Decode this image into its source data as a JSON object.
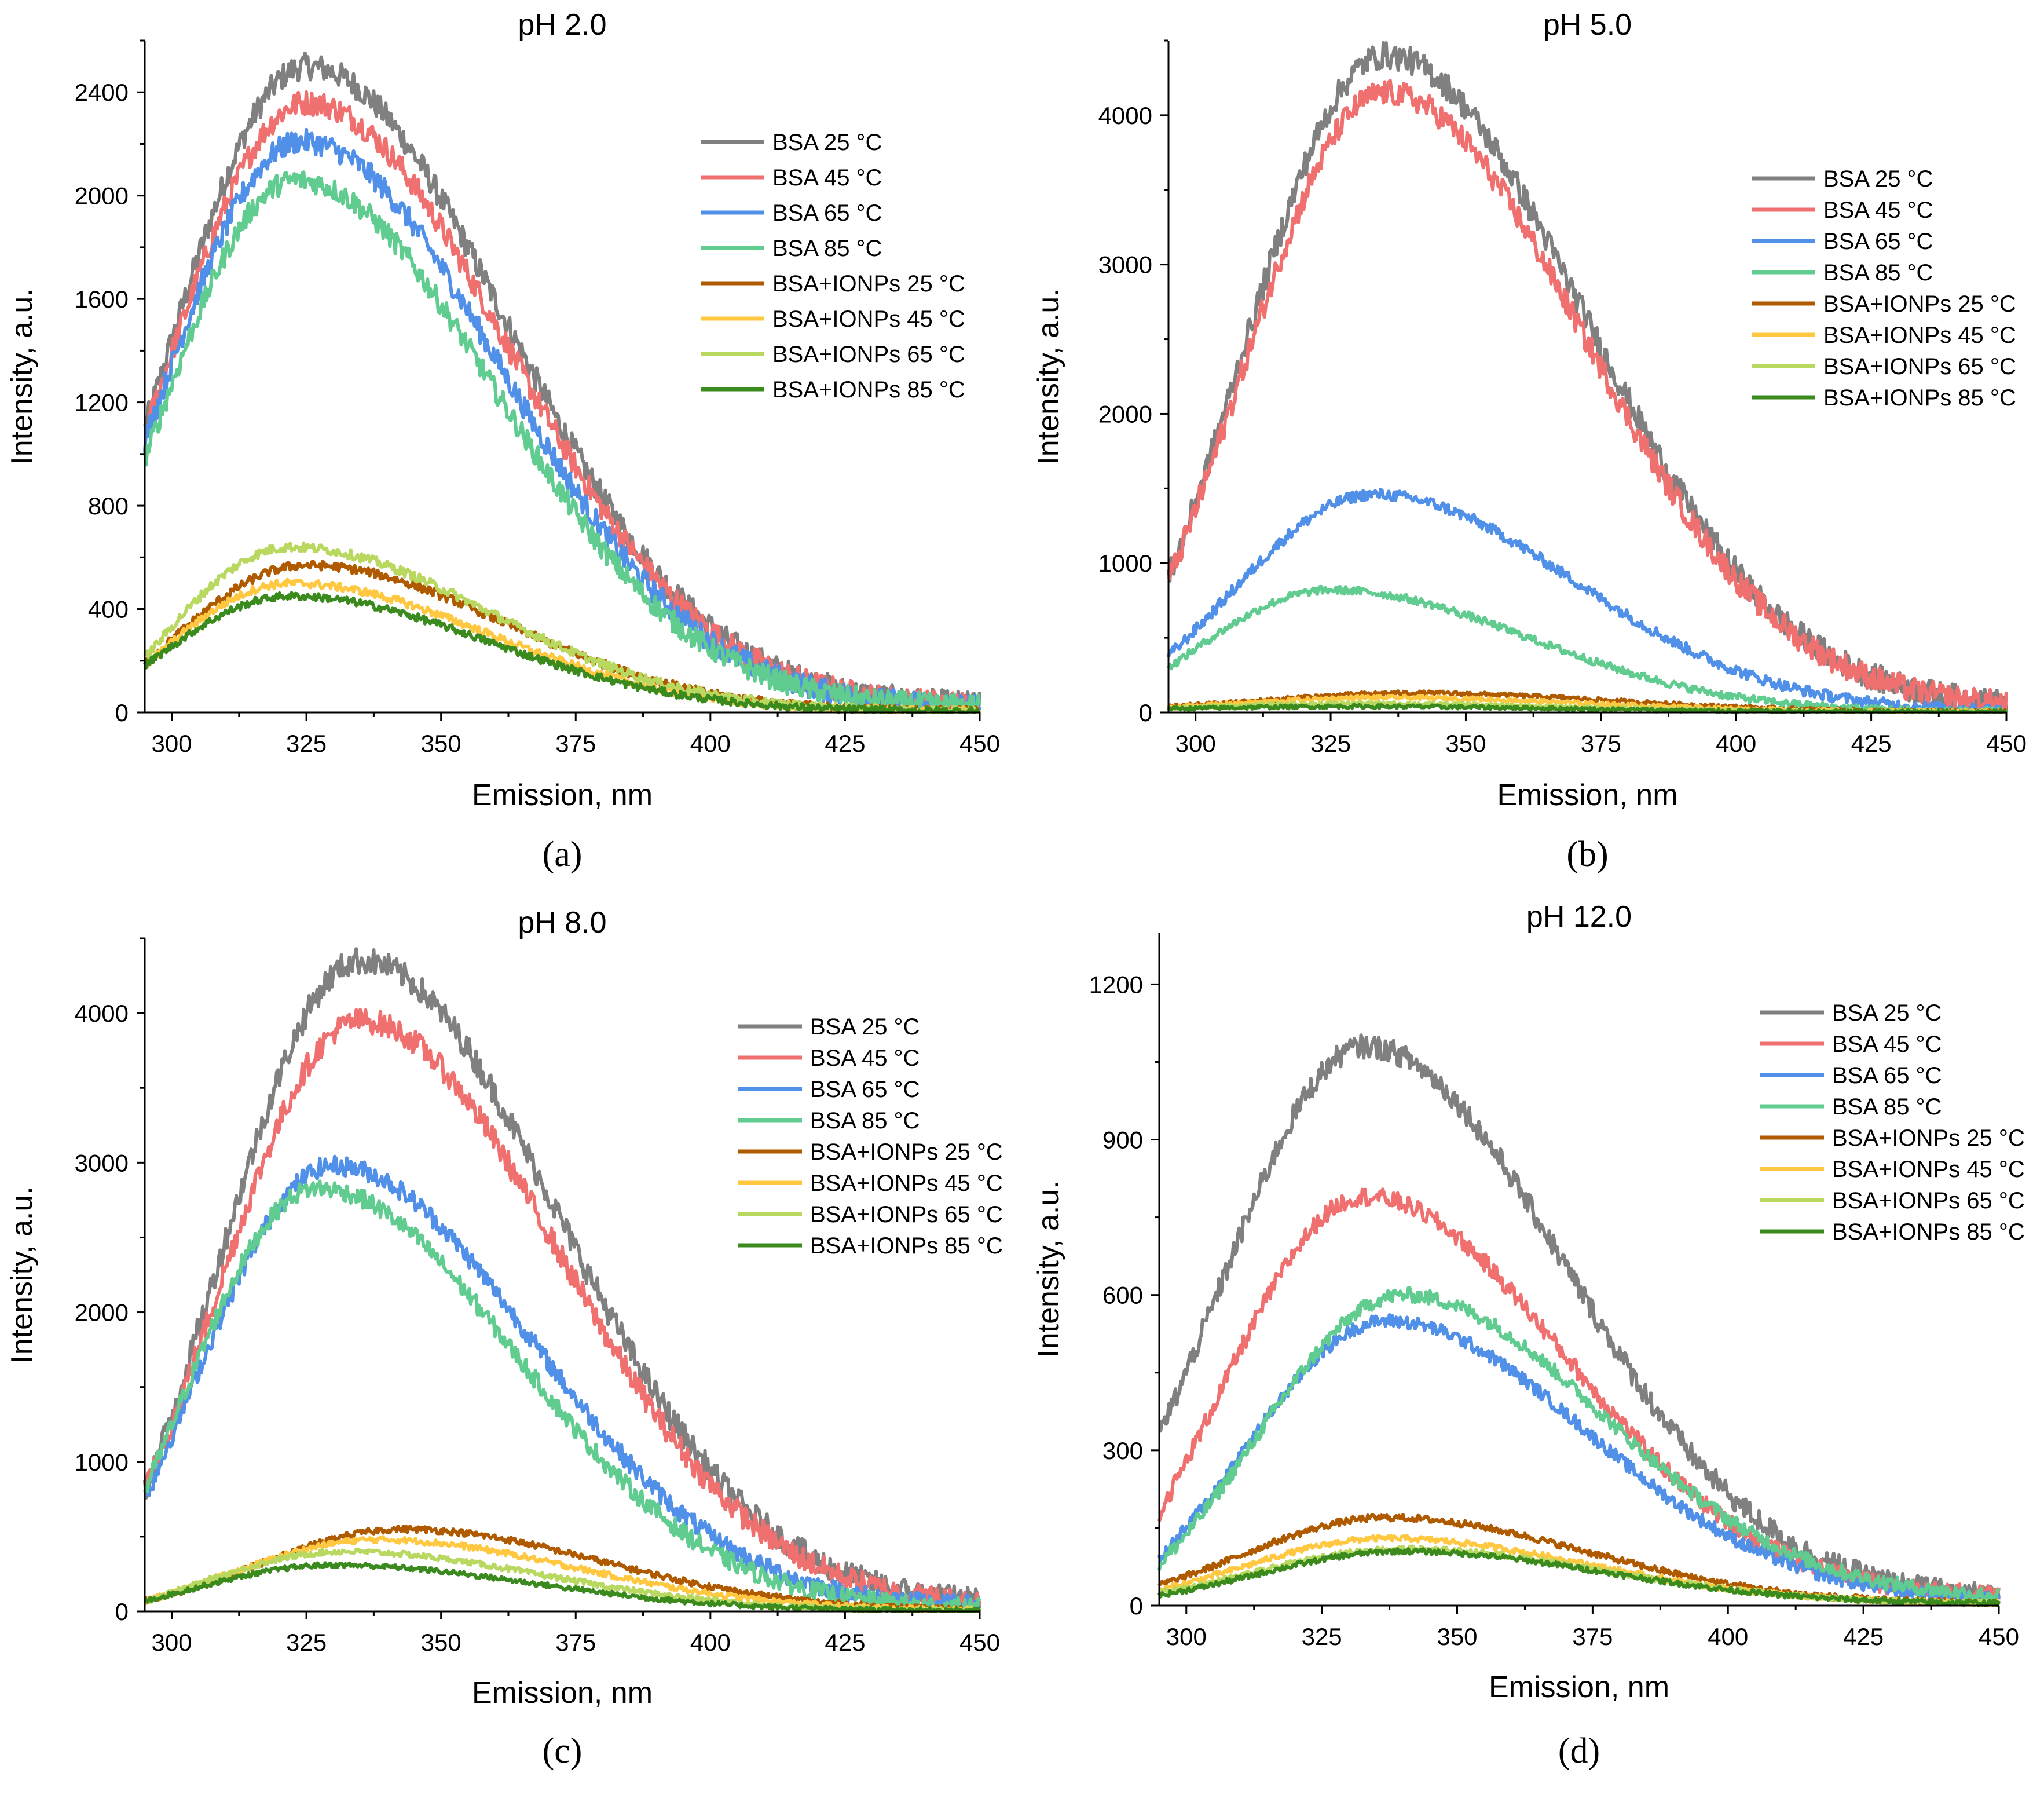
{
  "figure": {
    "colors": {
      "bsa25": "#808080",
      "bsa45": "#f07070",
      "bsa65": "#5090e8",
      "bsa85": "#60cc90",
      "ionp25": "#b05a00",
      "ionp45": "#ffc840",
      "ionp65": "#b8d860",
      "ionp85": "#3a8a1e"
    }
  },
  "chart_data": [
    {
      "type": "line",
      "panel_label": "(a)",
      "title": "pH 2.0",
      "xlabel": "Emission, nm",
      "ylabel": "Intensity, a.u.",
      "xlim": [
        295,
        450
      ],
      "ylim": [
        0,
        2600
      ],
      "xticks": [
        "300",
        "325",
        "350",
        "375",
        "400",
        "425",
        "450"
      ],
      "yticks": [
        "0",
        "400",
        "800",
        "1200",
        "1600",
        "2000",
        "2400"
      ],
      "legend_position": "top-right",
      "series": [
        {
          "name": "BSA 25 °C",
          "color": "#808080",
          "peak_x": 325,
          "peak_y": 2500,
          "start_y": 1100,
          "end_y": 30
        },
        {
          "name": "BSA 45 °C",
          "color": "#f07070",
          "peak_x": 325,
          "peak_y": 2360,
          "start_y": 1080,
          "end_y": 30
        },
        {
          "name": "BSA 65 °C",
          "color": "#5090e8",
          "peak_x": 324,
          "peak_y": 2210,
          "start_y": 1050,
          "end_y": 25
        },
        {
          "name": "BSA 85 °C",
          "color": "#60cc90",
          "peak_x": 323,
          "peak_y": 2060,
          "start_y": 980,
          "end_y": 25
        },
        {
          "name": "BSA+IONPs 25 °C",
          "color": "#b05a00",
          "peak_x": 325,
          "peak_y": 570,
          "start_y": 190,
          "end_y": 5
        },
        {
          "name": "BSA+IONPs 45 °C",
          "color": "#ffc840",
          "peak_x": 322,
          "peak_y": 500,
          "start_y": 180,
          "end_y": 5
        },
        {
          "name": "BSA+IONPs 65 °C",
          "color": "#b8d860",
          "peak_x": 322,
          "peak_y": 640,
          "start_y": 210,
          "end_y": 5
        },
        {
          "name": "BSA+IONPs 85 °C",
          "color": "#3a8a1e",
          "peak_x": 322,
          "peak_y": 450,
          "start_y": 180,
          "end_y": 5
        }
      ]
    },
    {
      "type": "line",
      "panel_label": "(b)",
      "title": "pH 5.0",
      "xlabel": "Emission, nm",
      "ylabel": "Intensity, a.u.",
      "xlim": [
        295,
        450
      ],
      "ylim": [
        0,
        4500
      ],
      "xticks": [
        "300",
        "325",
        "350",
        "375",
        "400",
        "425",
        "450"
      ],
      "yticks": [
        "0",
        "1000",
        "2000",
        "3000",
        "4000"
      ],
      "legend_position": "top-right",
      "series": [
        {
          "name": "BSA 25 °C",
          "color": "#808080",
          "peak_x": 335,
          "peak_y": 4400,
          "start_y": 900,
          "end_y": 60
        },
        {
          "name": "BSA 45 °C",
          "color": "#f07070",
          "peak_x": 335,
          "peak_y": 4150,
          "start_y": 880,
          "end_y": 60
        },
        {
          "name": "BSA 65 °C",
          "color": "#5090e8",
          "peak_x": 333,
          "peak_y": 1460,
          "start_y": 380,
          "end_y": 15
        },
        {
          "name": "BSA 85 °C",
          "color": "#60cc90",
          "peak_x": 325,
          "peak_y": 820,
          "start_y": 300,
          "end_y": 5
        },
        {
          "name": "BSA+IONPs 25 °C",
          "color": "#b05a00",
          "peak_x": 340,
          "peak_y": 130,
          "start_y": 40,
          "end_y": 5
        },
        {
          "name": "BSA+IONPs 45 °C",
          "color": "#ffc840",
          "peak_x": 335,
          "peak_y": 100,
          "start_y": 35,
          "end_y": 5
        },
        {
          "name": "BSA+IONPs 65 °C",
          "color": "#b8d860",
          "peak_x": 330,
          "peak_y": 60,
          "start_y": 30,
          "end_y": 5
        },
        {
          "name": "BSA+IONPs 85 °C",
          "color": "#3a8a1e",
          "peak_x": 330,
          "peak_y": 40,
          "start_y": 25,
          "end_y": 5
        }
      ]
    },
    {
      "type": "line",
      "panel_label": "(c)",
      "title": "pH 8.0",
      "xlabel": "Emission, nm",
      "ylabel": "Intensity, a.u.",
      "xlim": [
        295,
        450
      ],
      "ylim": [
        0,
        4500
      ],
      "xticks": [
        "300",
        "325",
        "350",
        "375",
        "400",
        "425",
        "450"
      ],
      "yticks": [
        "0",
        "1000",
        "2000",
        "3000",
        "4000"
      ],
      "legend_position": "top-right",
      "series": [
        {
          "name": "BSA 25 °C",
          "color": "#808080",
          "peak_x": 335,
          "peak_y": 4350,
          "start_y": 800,
          "end_y": 70
        },
        {
          "name": "BSA 45 °C",
          "color": "#f07070",
          "peak_x": 335,
          "peak_y": 3950,
          "start_y": 800,
          "end_y": 60
        },
        {
          "name": "BSA 65 °C",
          "color": "#5090e8",
          "peak_x": 330,
          "peak_y": 2980,
          "start_y": 750,
          "end_y": 40
        },
        {
          "name": "BSA 85 °C",
          "color": "#60cc90",
          "peak_x": 327,
          "peak_y": 2830,
          "start_y": 800,
          "end_y": 25
        },
        {
          "name": "BSA+IONPs 25 °C",
          "color": "#b05a00",
          "peak_x": 343,
          "peak_y": 550,
          "start_y": 70,
          "end_y": 10
        },
        {
          "name": "BSA+IONPs 45 °C",
          "color": "#ffc840",
          "peak_x": 338,
          "peak_y": 480,
          "start_y": 70,
          "end_y": 10
        },
        {
          "name": "BSA+IONPs 65 °C",
          "color": "#b8d860",
          "peak_x": 332,
          "peak_y": 400,
          "start_y": 70,
          "end_y": 5
        },
        {
          "name": "BSA+IONPs 85 °C",
          "color": "#3a8a1e",
          "peak_x": 330,
          "peak_y": 310,
          "start_y": 70,
          "end_y": 5
        }
      ]
    },
    {
      "type": "line",
      "panel_label": "(d)",
      "title": "pH 12.0",
      "xlabel": "Emission, nm",
      "ylabel": "Intensity, a.u.",
      "xlim": [
        295,
        450
      ],
      "ylim": [
        0,
        1300
      ],
      "xticks": [
        "300",
        "325",
        "350",
        "375",
        "400",
        "425",
        "450"
      ],
      "yticks": [
        "0",
        "300",
        "600",
        "900",
        "1200"
      ],
      "legend_position": "top-right",
      "series": [
        {
          "name": "BSA 25 °C",
          "color": "#808080",
          "peak_x": 333,
          "peak_y": 1080,
          "start_y": 330,
          "end_y": 20
        },
        {
          "name": "BSA 45 °C",
          "color": "#f07070",
          "peak_x": 333,
          "peak_y": 790,
          "start_y": 180,
          "end_y": 20
        },
        {
          "name": "BSA 65 °C",
          "color": "#5090e8",
          "peak_x": 337,
          "peak_y": 550,
          "start_y": 90,
          "end_y": 15
        },
        {
          "name": "BSA 85 °C",
          "color": "#60cc90",
          "peak_x": 340,
          "peak_y": 600,
          "start_y": 80,
          "end_y": 20
        },
        {
          "name": "BSA+IONPs 25 °C",
          "color": "#b05a00",
          "peak_x": 337,
          "peak_y": 170,
          "start_y": 40,
          "end_y": 5
        },
        {
          "name": "BSA+IONPs 45 °C",
          "color": "#ffc840",
          "peak_x": 337,
          "peak_y": 130,
          "start_y": 30,
          "end_y": 5
        },
        {
          "name": "BSA+IONPs 65 °C",
          "color": "#b8d860",
          "peak_x": 340,
          "peak_y": 110,
          "start_y": 25,
          "end_y": 5
        },
        {
          "name": "BSA+IONPs 85 °C",
          "color": "#3a8a1e",
          "peak_x": 340,
          "peak_y": 105,
          "start_y": 20,
          "end_y": 5
        }
      ]
    }
  ]
}
